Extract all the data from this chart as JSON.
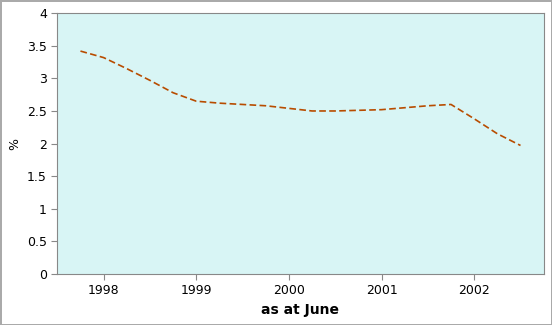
{
  "x": [
    1997.75,
    1998.0,
    1998.25,
    1998.5,
    1998.75,
    1999.0,
    1999.25,
    1999.5,
    1999.75,
    2000.0,
    2000.25,
    2000.5,
    2000.75,
    2001.0,
    2001.25,
    2001.5,
    2001.75,
    2002.0,
    2002.25,
    2002.5
  ],
  "y": [
    3.42,
    3.32,
    3.15,
    2.97,
    2.78,
    2.65,
    2.62,
    2.6,
    2.58,
    2.54,
    2.5,
    2.5,
    2.51,
    2.52,
    2.55,
    2.58,
    2.6,
    2.38,
    2.15,
    1.97
  ],
  "line_color": "#b84c00",
  "background_color": "#d8f5f5",
  "outer_background": "#ffffff",
  "figure_border_color": "#aaaaaa",
  "xlabel": "as at June",
  "ylabel": "%",
  "ylim": [
    0,
    4
  ],
  "xlim": [
    1997.5,
    2002.75
  ],
  "xticks": [
    1998,
    1999,
    2000,
    2001,
    2002
  ],
  "yticks": [
    0,
    0.5,
    1.0,
    1.5,
    2.0,
    2.5,
    3.0,
    3.5,
    4.0
  ],
  "ytick_labels": [
    "0",
    "0.5",
    "1",
    "1.5",
    "2",
    "2.5",
    "3",
    "3.5",
    "4"
  ],
  "linestyle": "-",
  "linewidth": 1.2,
  "spine_color": "#888888",
  "xlabel_fontsize": 10,
  "ylabel_fontsize": 9,
  "tick_fontsize": 9
}
